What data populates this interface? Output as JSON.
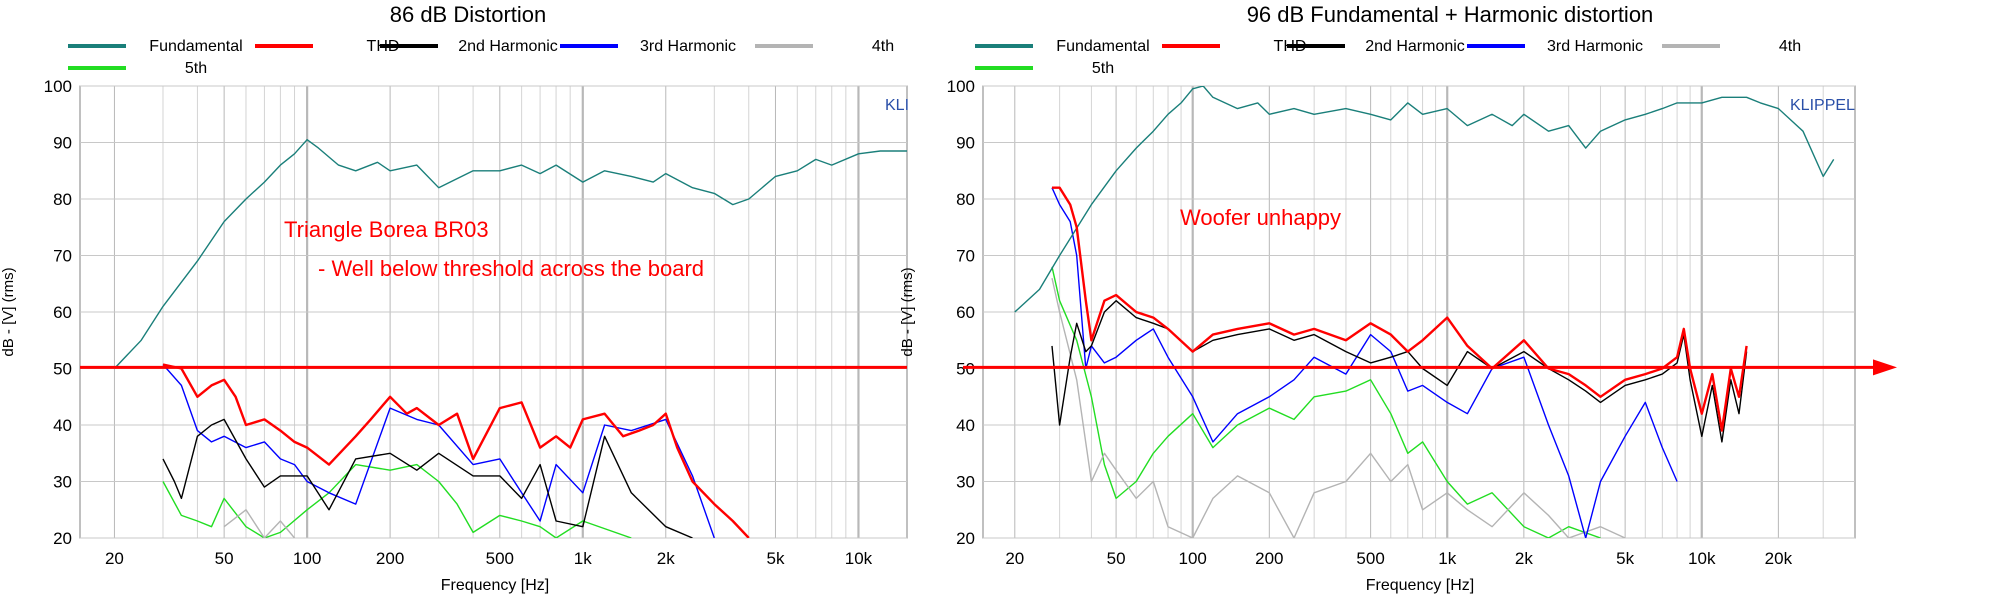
{
  "colors": {
    "fundamental": "#1a7f7a",
    "thd": "#ff0000",
    "h2": "#000000",
    "h3": "#0000ff",
    "h4": "#b4b4b4",
    "h5": "#22dd22",
    "threshold": "#ff0000",
    "annotation": "#ff0000",
    "klippel": "#2a4fa8"
  },
  "chart_data": [
    {
      "type": "line",
      "title": "86 dB Distortion",
      "xlabel": "Frequency [Hz]",
      "ylabel": "dB - [V] (rms)",
      "xscale": "log",
      "xlim": [
        15,
        15000
      ],
      "ylim": [
        20,
        100
      ],
      "grid": true,
      "legend": "top",
      "watermark": "KLI",
      "xticks": [
        20,
        50,
        100,
        200,
        500,
        1000,
        2000,
        5000,
        10000
      ],
      "xtick_labels": [
        "20",
        "50",
        "100",
        "200",
        "500",
        "1k",
        "2k",
        "5k",
        "10k"
      ],
      "yticks": [
        20,
        30,
        40,
        50,
        60,
        70,
        80,
        90,
        100
      ],
      "threshold_db": 50.2,
      "annotations": [
        "Triangle Borea BR03",
        "- Well below threshold across the board"
      ],
      "series": [
        {
          "name": "Fundamental",
          "key": "fundamental",
          "x": [
            20,
            25,
            30,
            40,
            50,
            60,
            70,
            80,
            90,
            100,
            110,
            130,
            150,
            180,
            200,
            250,
            300,
            400,
            500,
            600,
            700,
            800,
            1000,
            1200,
            1500,
            1800,
            2000,
            2500,
            3000,
            3500,
            4000,
            5000,
            6000,
            7000,
            8000,
            10000,
            12000,
            15000
          ],
          "y": [
            50,
            55,
            61,
            69,
            76,
            80,
            83,
            86,
            88,
            90.5,
            89,
            86,
            85,
            86.5,
            85,
            86,
            82,
            85,
            85,
            86,
            84.5,
            86,
            83,
            85,
            84,
            83,
            84.5,
            82,
            81,
            79,
            80,
            84,
            85,
            87,
            86,
            88,
            88.5,
            88.5
          ]
        },
        {
          "name": "THD",
          "key": "thd",
          "x": [
            30,
            35,
            40,
            45,
            50,
            55,
            60,
            70,
            80,
            90,
            100,
            120,
            150,
            170,
            200,
            230,
            250,
            300,
            350,
            400,
            500,
            600,
            700,
            800,
            900,
            1000,
            1200,
            1400,
            1600,
            1800,
            2000,
            2200,
            2500,
            3000,
            3500,
            4000
          ],
          "y": [
            50.7,
            50,
            45,
            47,
            48,
            45,
            40,
            41,
            39,
            37,
            36,
            33,
            38,
            41,
            45,
            42,
            43,
            40,
            42,
            34,
            43,
            44,
            36,
            38,
            36,
            41,
            42,
            38,
            39,
            40,
            42,
            36,
            30,
            26,
            23,
            20
          ]
        },
        {
          "name": "2nd Harmonic",
          "key": "h2",
          "x": [
            30,
            33,
            35,
            40,
            45,
            50,
            60,
            70,
            80,
            100,
            120,
            150,
            200,
            250,
            300,
            400,
            500,
            600,
            700,
            800,
            1000,
            1200,
            1500,
            2000,
            2500
          ],
          "y": [
            34,
            30,
            27,
            38,
            40,
            41,
            34,
            29,
            31,
            31,
            25,
            34,
            35,
            32,
            35,
            31,
            31,
            27,
            33,
            23,
            22,
            38,
            28,
            22,
            20
          ]
        },
        {
          "name": "3rd Harmonic",
          "key": "h3",
          "x": [
            30,
            35,
            40,
            45,
            50,
            60,
            70,
            80,
            90,
            100,
            120,
            150,
            200,
            250,
            300,
            400,
            500,
            600,
            700,
            800,
            1000,
            1200,
            1500,
            2000,
            2500,
            3000
          ],
          "y": [
            50.7,
            47,
            39,
            37,
            38,
            36,
            37,
            34,
            33,
            30,
            28,
            26,
            43,
            41,
            40,
            33,
            34,
            28,
            23,
            33,
            28,
            40,
            39,
            41,
            31,
            20
          ]
        },
        {
          "name": "4th",
          "key": "h4",
          "x": [
            50,
            60,
            70,
            80,
            90
          ],
          "y": [
            22,
            25,
            20,
            23,
            20
          ]
        },
        {
          "name": "5th",
          "key": "h5",
          "x": [
            30,
            35,
            40,
            45,
            50,
            60,
            70,
            80,
            100,
            120,
            150,
            200,
            250,
            300,
            350,
            400,
            500,
            600,
            700,
            800,
            1000,
            1500
          ],
          "y": [
            30,
            24,
            23,
            22,
            27,
            22,
            20,
            21,
            25,
            28,
            33,
            32,
            33,
            30,
            26,
            21,
            24,
            23,
            22,
            20,
            23,
            20
          ]
        }
      ]
    },
    {
      "type": "line",
      "title": "96 dB Fundamental + Harmonic distortion",
      "xlabel": "Frequency [Hz]",
      "ylabel": "dB - [V] (rms)",
      "xscale": "log",
      "xlim": [
        15,
        40000
      ],
      "ylim": [
        20,
        100
      ],
      "grid": true,
      "legend": "top",
      "watermark": "KLIPPEL",
      "xticks": [
        20,
        50,
        100,
        200,
        500,
        1000,
        2000,
        5000,
        10000,
        20000
      ],
      "xtick_labels": [
        "20",
        "50",
        "100",
        "200",
        "500",
        "1k",
        "2k",
        "5k",
        "10k",
        "20k"
      ],
      "yticks": [
        20,
        30,
        40,
        50,
        60,
        70,
        80,
        90,
        100
      ],
      "threshold_db": 50.2,
      "annotations": [
        "Woofer unhappy"
      ],
      "series": [
        {
          "name": "Fundamental",
          "key": "fundamental",
          "x": [
            20,
            25,
            30,
            40,
            50,
            60,
            70,
            80,
            90,
            100,
            110,
            120,
            150,
            180,
            200,
            250,
            300,
            400,
            500,
            600,
            700,
            800,
            1000,
            1200,
            1500,
            1800,
            2000,
            2500,
            3000,
            3500,
            4000,
            5000,
            6000,
            7000,
            8000,
            10000,
            12000,
            15000,
            17000,
            20000,
            25000,
            30000,
            33000
          ],
          "y": [
            60,
            64,
            70,
            79,
            85,
            89,
            92,
            95,
            97,
            99.5,
            100,
            98,
            96,
            97,
            95,
            96,
            95,
            96,
            95,
            94,
            97,
            95,
            96,
            93,
            95,
            93,
            95,
            92,
            93,
            89,
            92,
            94,
            95,
            96,
            97,
            97,
            98,
            98,
            97,
            96,
            92,
            84,
            87
          ]
        },
        {
          "name": "THD",
          "key": "thd",
          "x": [
            28,
            30,
            33,
            35,
            38,
            40,
            45,
            50,
            60,
            70,
            80,
            100,
            120,
            150,
            200,
            250,
            300,
            400,
            500,
            600,
            700,
            800,
            1000,
            1200,
            1500,
            2000,
            2500,
            3000,
            3500,
            4000,
            5000,
            6000,
            7000,
            8000,
            8500,
            9000,
            10000,
            11000,
            12000,
            13000,
            14000,
            15000
          ],
          "y": [
            82,
            82,
            79,
            75,
            62,
            55,
            62,
            63,
            60,
            59,
            57,
            53,
            56,
            57,
            58,
            56,
            57,
            55,
            58,
            56,
            53,
            55,
            59,
            54,
            50,
            55,
            50,
            49,
            47,
            45,
            48,
            49,
            50,
            52,
            57,
            50,
            42,
            49,
            39,
            50,
            45,
            54
          ]
        },
        {
          "name": "2nd Harmonic",
          "key": "h2",
          "x": [
            28,
            30,
            33,
            35,
            38,
            40,
            45,
            50,
            60,
            70,
            80,
            100,
            120,
            150,
            200,
            250,
            300,
            400,
            500,
            600,
            700,
            800,
            1000,
            1200,
            1500,
            2000,
            2500,
            3000,
            3500,
            4000,
            5000,
            6000,
            7000,
            8000,
            8500,
            9000,
            10000,
            11000,
            12000,
            13000,
            14000,
            15000
          ],
          "y": [
            54,
            40,
            52,
            58,
            53,
            54,
            60,
            62,
            59,
            58,
            57,
            53,
            55,
            56,
            57,
            55,
            56,
            53,
            51,
            52,
            53,
            50,
            47,
            53,
            50,
            53,
            50,
            48,
            46,
            44,
            47,
            48,
            49,
            51,
            56,
            48,
            38,
            47,
            37,
            48,
            42,
            53
          ]
        },
        {
          "name": "3rd Harmonic",
          "key": "h3",
          "x": [
            28,
            30,
            33,
            35,
            38,
            40,
            45,
            50,
            60,
            70,
            80,
            100,
            120,
            150,
            200,
            250,
            300,
            400,
            500,
            600,
            700,
            800,
            1000,
            1200,
            1500,
            2000,
            2500,
            3000,
            3500,
            4000,
            5000,
            6000,
            7000,
            8000
          ],
          "y": [
            82,
            79,
            76,
            70,
            50,
            54,
            51,
            52,
            55,
            57,
            52,
            45,
            37,
            42,
            45,
            48,
            52,
            49,
            56,
            53,
            46,
            47,
            44,
            42,
            50,
            52,
            40,
            31,
            20,
            30,
            38,
            44,
            36,
            30
          ]
        },
        {
          "name": "4th",
          "key": "h4",
          "x": [
            28,
            30,
            35,
            40,
            45,
            50,
            60,
            70,
            80,
            100,
            120,
            150,
            200,
            250,
            300,
            400,
            500,
            600,
            700,
            800,
            1000,
            1200,
            1500,
            2000,
            2500,
            3000,
            4000,
            5000
          ],
          "y": [
            66,
            60,
            48,
            30,
            35,
            32,
            27,
            30,
            22,
            20,
            27,
            31,
            28,
            20,
            28,
            30,
            35,
            30,
            33,
            25,
            28,
            25,
            22,
            28,
            24,
            20,
            22,
            20
          ]
        },
        {
          "name": "5th",
          "key": "h5",
          "x": [
            28,
            30,
            35,
            40,
            45,
            50,
            60,
            70,
            80,
            100,
            120,
            150,
            200,
            250,
            300,
            400,
            500,
            600,
            700,
            800,
            1000,
            1200,
            1500,
            2000,
            2500,
            3000,
            4000
          ],
          "y": [
            68,
            62,
            55,
            45,
            33,
            27,
            30,
            35,
            38,
            42,
            36,
            40,
            43,
            41,
            45,
            46,
            48,
            42,
            35,
            37,
            30,
            26,
            28,
            22,
            20,
            22,
            20
          ]
        }
      ]
    }
  ]
}
